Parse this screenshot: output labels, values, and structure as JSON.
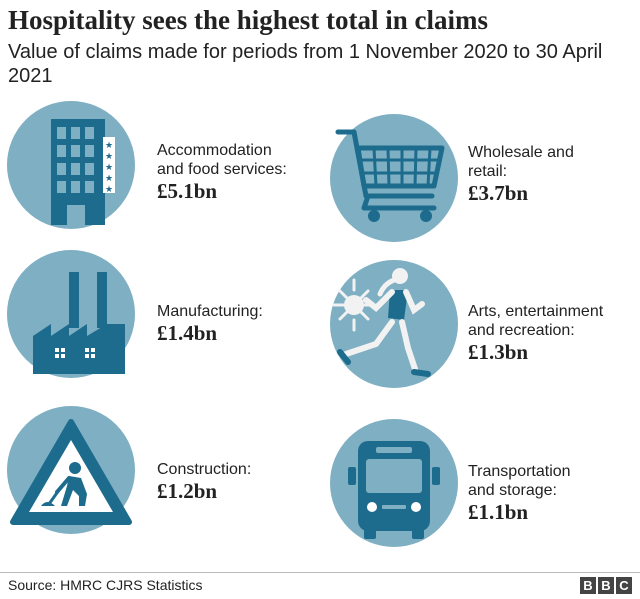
{
  "header": {
    "title": "Hospitality sees the highest total in claims",
    "subtitle": "Value of claims made for periods from 1 November 2020 to 30 April 2021"
  },
  "colors": {
    "circle": "#7fafc2",
    "icon": "#1d6b8d",
    "text": "#222222"
  },
  "sectors": [
    {
      "icon": "hotel-building-icon",
      "name": "Accommodation\nand food services:",
      "value": "£5.1bn"
    },
    {
      "icon": "shopping-trolley-icon",
      "name": "Wholesale and\nretail:",
      "value": "£3.7bn"
    },
    {
      "icon": "factory-icon",
      "name": "Manufacturing:",
      "value": "£1.4bn"
    },
    {
      "icon": "runner-icon",
      "name": "Arts, entertainment\nand recreation:",
      "value": "£1.3bn"
    },
    {
      "icon": "roadworks-sign-icon",
      "name": "Construction:",
      "value": "£1.2bn"
    },
    {
      "icon": "bus-icon",
      "name": "Transportation\nand storage:",
      "value": "£1.1bn"
    }
  ],
  "footer": {
    "source": "Source: HMRC CJRS Statistics",
    "logo": [
      "B",
      "B",
      "C"
    ]
  }
}
